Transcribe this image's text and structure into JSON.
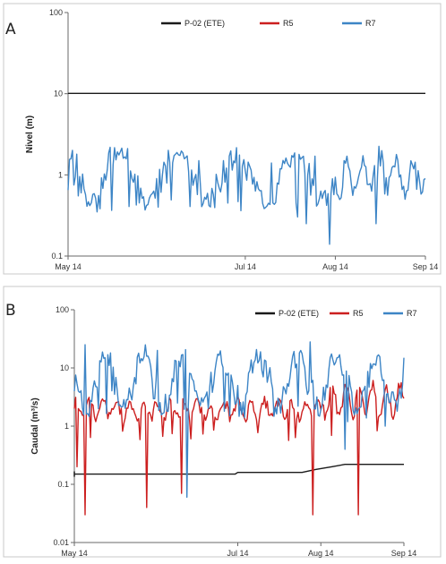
{
  "chart_data": [
    {
      "type": "line",
      "panel_label": "A",
      "ylabel": "Nivel (m)",
      "xlabel": "",
      "yscale": "log",
      "ylim": [
        0.1,
        100
      ],
      "yticks": [
        {
          "value": 0.1,
          "label": "0.1"
        },
        {
          "value": 1,
          "label": "1"
        },
        {
          "value": 10,
          "label": "10"
        },
        {
          "value": 100,
          "label": "100"
        }
      ],
      "xlim": [
        "2014-05-01",
        "2014-09-01"
      ],
      "xticks": [
        {
          "value": "2014-05-01",
          "label": "May 14"
        },
        {
          "value": "2014-07-01",
          "label": "Jul 14"
        },
        {
          "value": "2014-08-01",
          "label": "Aug 14"
        },
        {
          "value": "2014-09-01",
          "label": "Sep 14"
        }
      ],
      "grid": false,
      "legend_position": "top",
      "series": [
        {
          "name": "P-02 (ETE)",
          "color": "#1a1a1a",
          "pattern": "flat",
          "points": [
            [
              "2014-05-01",
              10.1
            ],
            [
              "2014-09-01",
              10.1
            ]
          ]
        },
        {
          "name": "R5",
          "color": "#cc1f1f",
          "pattern": "none",
          "points": []
        },
        {
          "name": "R7",
          "color": "#3d85c6",
          "pattern": "level",
          "points": [
            [
              "2014-05-01",
              0.65
            ],
            [
              "2014-05-03",
              0.75
            ],
            [
              "2014-05-04",
              1.8
            ],
            [
              "2014-05-11",
              0.35
            ],
            [
              "2014-05-20",
              1.6
            ],
            [
              "2014-06-01",
              0.4
            ],
            [
              "2014-06-15",
              1.5
            ],
            [
              "2014-06-25",
              0.45
            ],
            [
              "2014-07-10",
              1.4
            ],
            [
              "2014-07-22",
              0.25
            ],
            [
              "2014-07-25",
              1.7
            ],
            [
              "2014-07-28",
              0.6
            ],
            [
              "2014-07-30",
              0.14
            ],
            [
              "2014-08-04",
              1.5
            ],
            [
              "2014-08-15",
              0.25
            ],
            [
              "2014-08-25",
              0.5
            ],
            [
              "2014-09-01",
              0.9
            ]
          ]
        }
      ]
    },
    {
      "type": "line",
      "panel_label": "B",
      "ylabel": "Caudal (m³/s)",
      "xlabel": "",
      "yscale": "log",
      "ylim": [
        0.01,
        100
      ],
      "yticks": [
        {
          "value": 0.01,
          "label": "0.01"
        },
        {
          "value": 0.1,
          "label": "0.1"
        },
        {
          "value": 1,
          "label": "1"
        },
        {
          "value": 10,
          "label": "10"
        },
        {
          "value": 100,
          "label": "100"
        }
      ],
      "xlim": [
        "2014-05-01",
        "2014-09-01"
      ],
      "xticks": [
        {
          "value": "2014-05-01",
          "label": "May 14"
        },
        {
          "value": "2014-07-01",
          "label": "Jul 14"
        },
        {
          "value": "2014-08-01",
          "label": "Aug 14"
        },
        {
          "value": "2014-09-01",
          "label": "Sep 14"
        }
      ],
      "grid": false,
      "legend_position": "top-right",
      "series": [
        {
          "name": "P-02 (ETE)",
          "color": "#1a1a1a",
          "pattern": "step",
          "points": [
            [
              "2014-05-01",
              0.15
            ],
            [
              "2014-05-02",
              0.15
            ],
            [
              "2014-06-30",
              0.15
            ],
            [
              "2014-07-01",
              0.16
            ],
            [
              "2014-07-25",
              0.16
            ],
            [
              "2014-07-30",
              0.18
            ],
            [
              "2014-08-05",
              0.2
            ],
            [
              "2014-08-10",
              0.22
            ],
            [
              "2014-09-01",
              0.22
            ]
          ]
        },
        {
          "name": "R5",
          "color": "#cc1f1f",
          "pattern": "flow-red",
          "points": [
            [
              "2014-05-01",
              2.0
            ],
            [
              "2014-05-02",
              0.2
            ],
            [
              "2014-05-05",
              0.03
            ],
            [
              "2014-05-15",
              2.0
            ],
            [
              "2014-05-28",
              0.04
            ],
            [
              "2014-06-10",
              0.07
            ],
            [
              "2014-06-20",
              2.0
            ],
            [
              "2014-07-29",
              0.03
            ],
            [
              "2014-08-15",
              0.03
            ],
            [
              "2014-09-01",
              3.0
            ]
          ]
        },
        {
          "name": "R7",
          "color": "#3d85c6",
          "pattern": "flow-blue",
          "points": [
            [
              "2014-05-01",
              4.0
            ],
            [
              "2014-05-05",
              25.0
            ],
            [
              "2014-05-10",
              2.0
            ],
            [
              "2014-06-01",
              20.0
            ],
            [
              "2014-06-12",
              0.06
            ],
            [
              "2014-07-01",
              5.0
            ],
            [
              "2014-07-28",
              28.0
            ],
            [
              "2014-08-10",
              0.4
            ],
            [
              "2014-08-25",
              1.0
            ],
            [
              "2014-09-01",
              15.0
            ]
          ]
        }
      ]
    }
  ]
}
